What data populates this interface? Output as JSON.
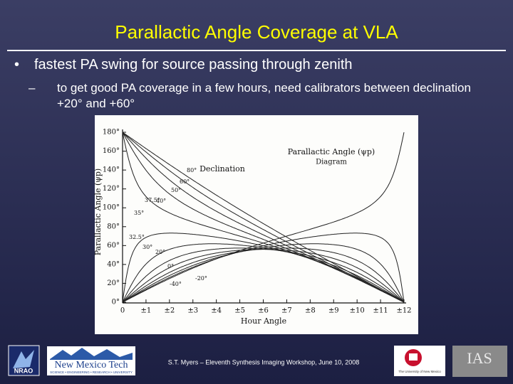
{
  "title": "Parallactic Angle Coverage at VLA",
  "bullets": [
    {
      "text": "fastest PA swing for source passing through zenith",
      "sub": [
        "to get good PA coverage in a few hours, need calibrators between declination +20° and +60°"
      ]
    }
  ],
  "figure": {
    "title": "Parallactic Angle (ψp)",
    "subtitle": "Diagram",
    "y_label": "Parallactic Angle (ψp)",
    "x_label": "Hour Angle",
    "legend_title": "Declination",
    "yticks": [
      "180°",
      "160°",
      "140°",
      "120°",
      "100°",
      "80°",
      "60°",
      "40°",
      "20°",
      "0°"
    ],
    "xticks": [
      "0",
      "±1",
      "±2",
      "±3",
      "±4",
      "±5",
      "±6",
      "±7",
      "±8",
      "±9",
      "±10",
      "±11",
      "±12"
    ],
    "curve_labels": [
      "80°",
      "60°",
      "50°",
      "37.5°",
      "40°",
      "35°",
      "32.5°",
      "30°",
      "20°",
      "0°",
      "-20°",
      "-40°"
    ]
  },
  "footer": {
    "citation": "S.T. Myers – Eleventh Synthesis Imaging Workshop, June 10, 2008",
    "logos": [
      "NRAO",
      "New Mexico Tech",
      "SCIENCE • ENGINEERING • RESEARCH • UNIVERSITY",
      "The University of New Mexico",
      "IAS"
    ]
  }
}
